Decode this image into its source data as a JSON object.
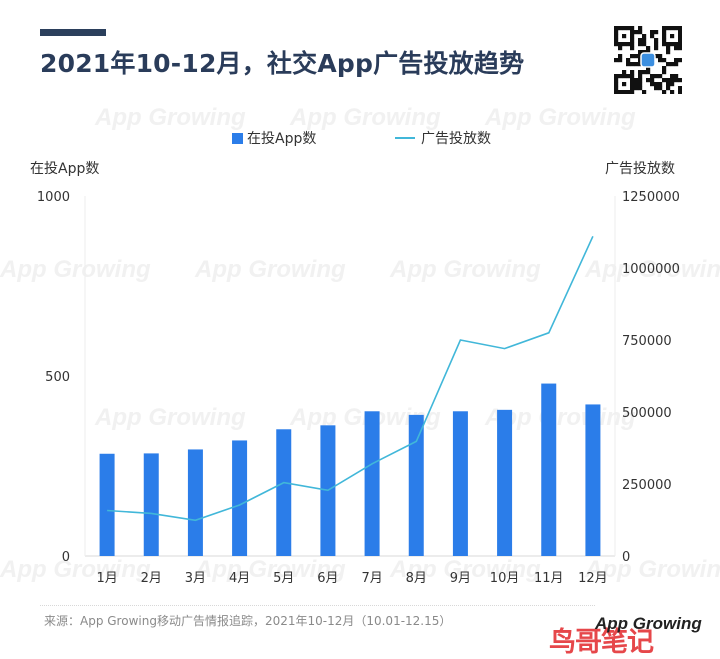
{
  "title": "2021年10-12月，社交App广告投放趋势",
  "watermark": "App Growing",
  "legend": {
    "bar": "在投App数",
    "line": "广告投放数"
  },
  "source": "来源：App Growing移动广告情报追踪，2021年10-12月（10.01-12.15）",
  "logo": {
    "app_text": "App Growing",
    "cn_text": "鸟哥笔记"
  },
  "colors": {
    "bar": "#2b7de9",
    "line": "#41b7d9",
    "title": "#2a3c5a",
    "logo_red": "#e6474a"
  },
  "chart_data": {
    "type": "bar+line",
    "categories": [
      "1月",
      "2月",
      "3月",
      "4月",
      "5月",
      "6月",
      "7月",
      "8月",
      "9月",
      "10月",
      "11月",
      "12月"
    ],
    "series": [
      {
        "name": "在投App数",
        "type": "bar",
        "axis": "left",
        "values": [
          284,
          285,
          296,
          321,
          352,
          363,
          402,
          392,
          402,
          406,
          479,
          421
        ]
      },
      {
        "name": "广告投放数",
        "type": "line",
        "axis": "right",
        "values": [
          158000,
          148000,
          124000,
          177000,
          255000,
          228000,
          320000,
          398000,
          750000,
          720000,
          775000,
          1110000
        ]
      }
    ],
    "ylabel_left": "在投App数",
    "ylabel_right": "广告投放数",
    "ylim_left": [
      0,
      1000
    ],
    "ylim_right": [
      0,
      1250000
    ],
    "yticks_left": [
      "0",
      "500",
      "1000"
    ],
    "yticks_right": [
      "0",
      "250000",
      "500000",
      "750000",
      "1000000",
      "1250000"
    ],
    "grid": false,
    "legend_position": "top-center"
  }
}
